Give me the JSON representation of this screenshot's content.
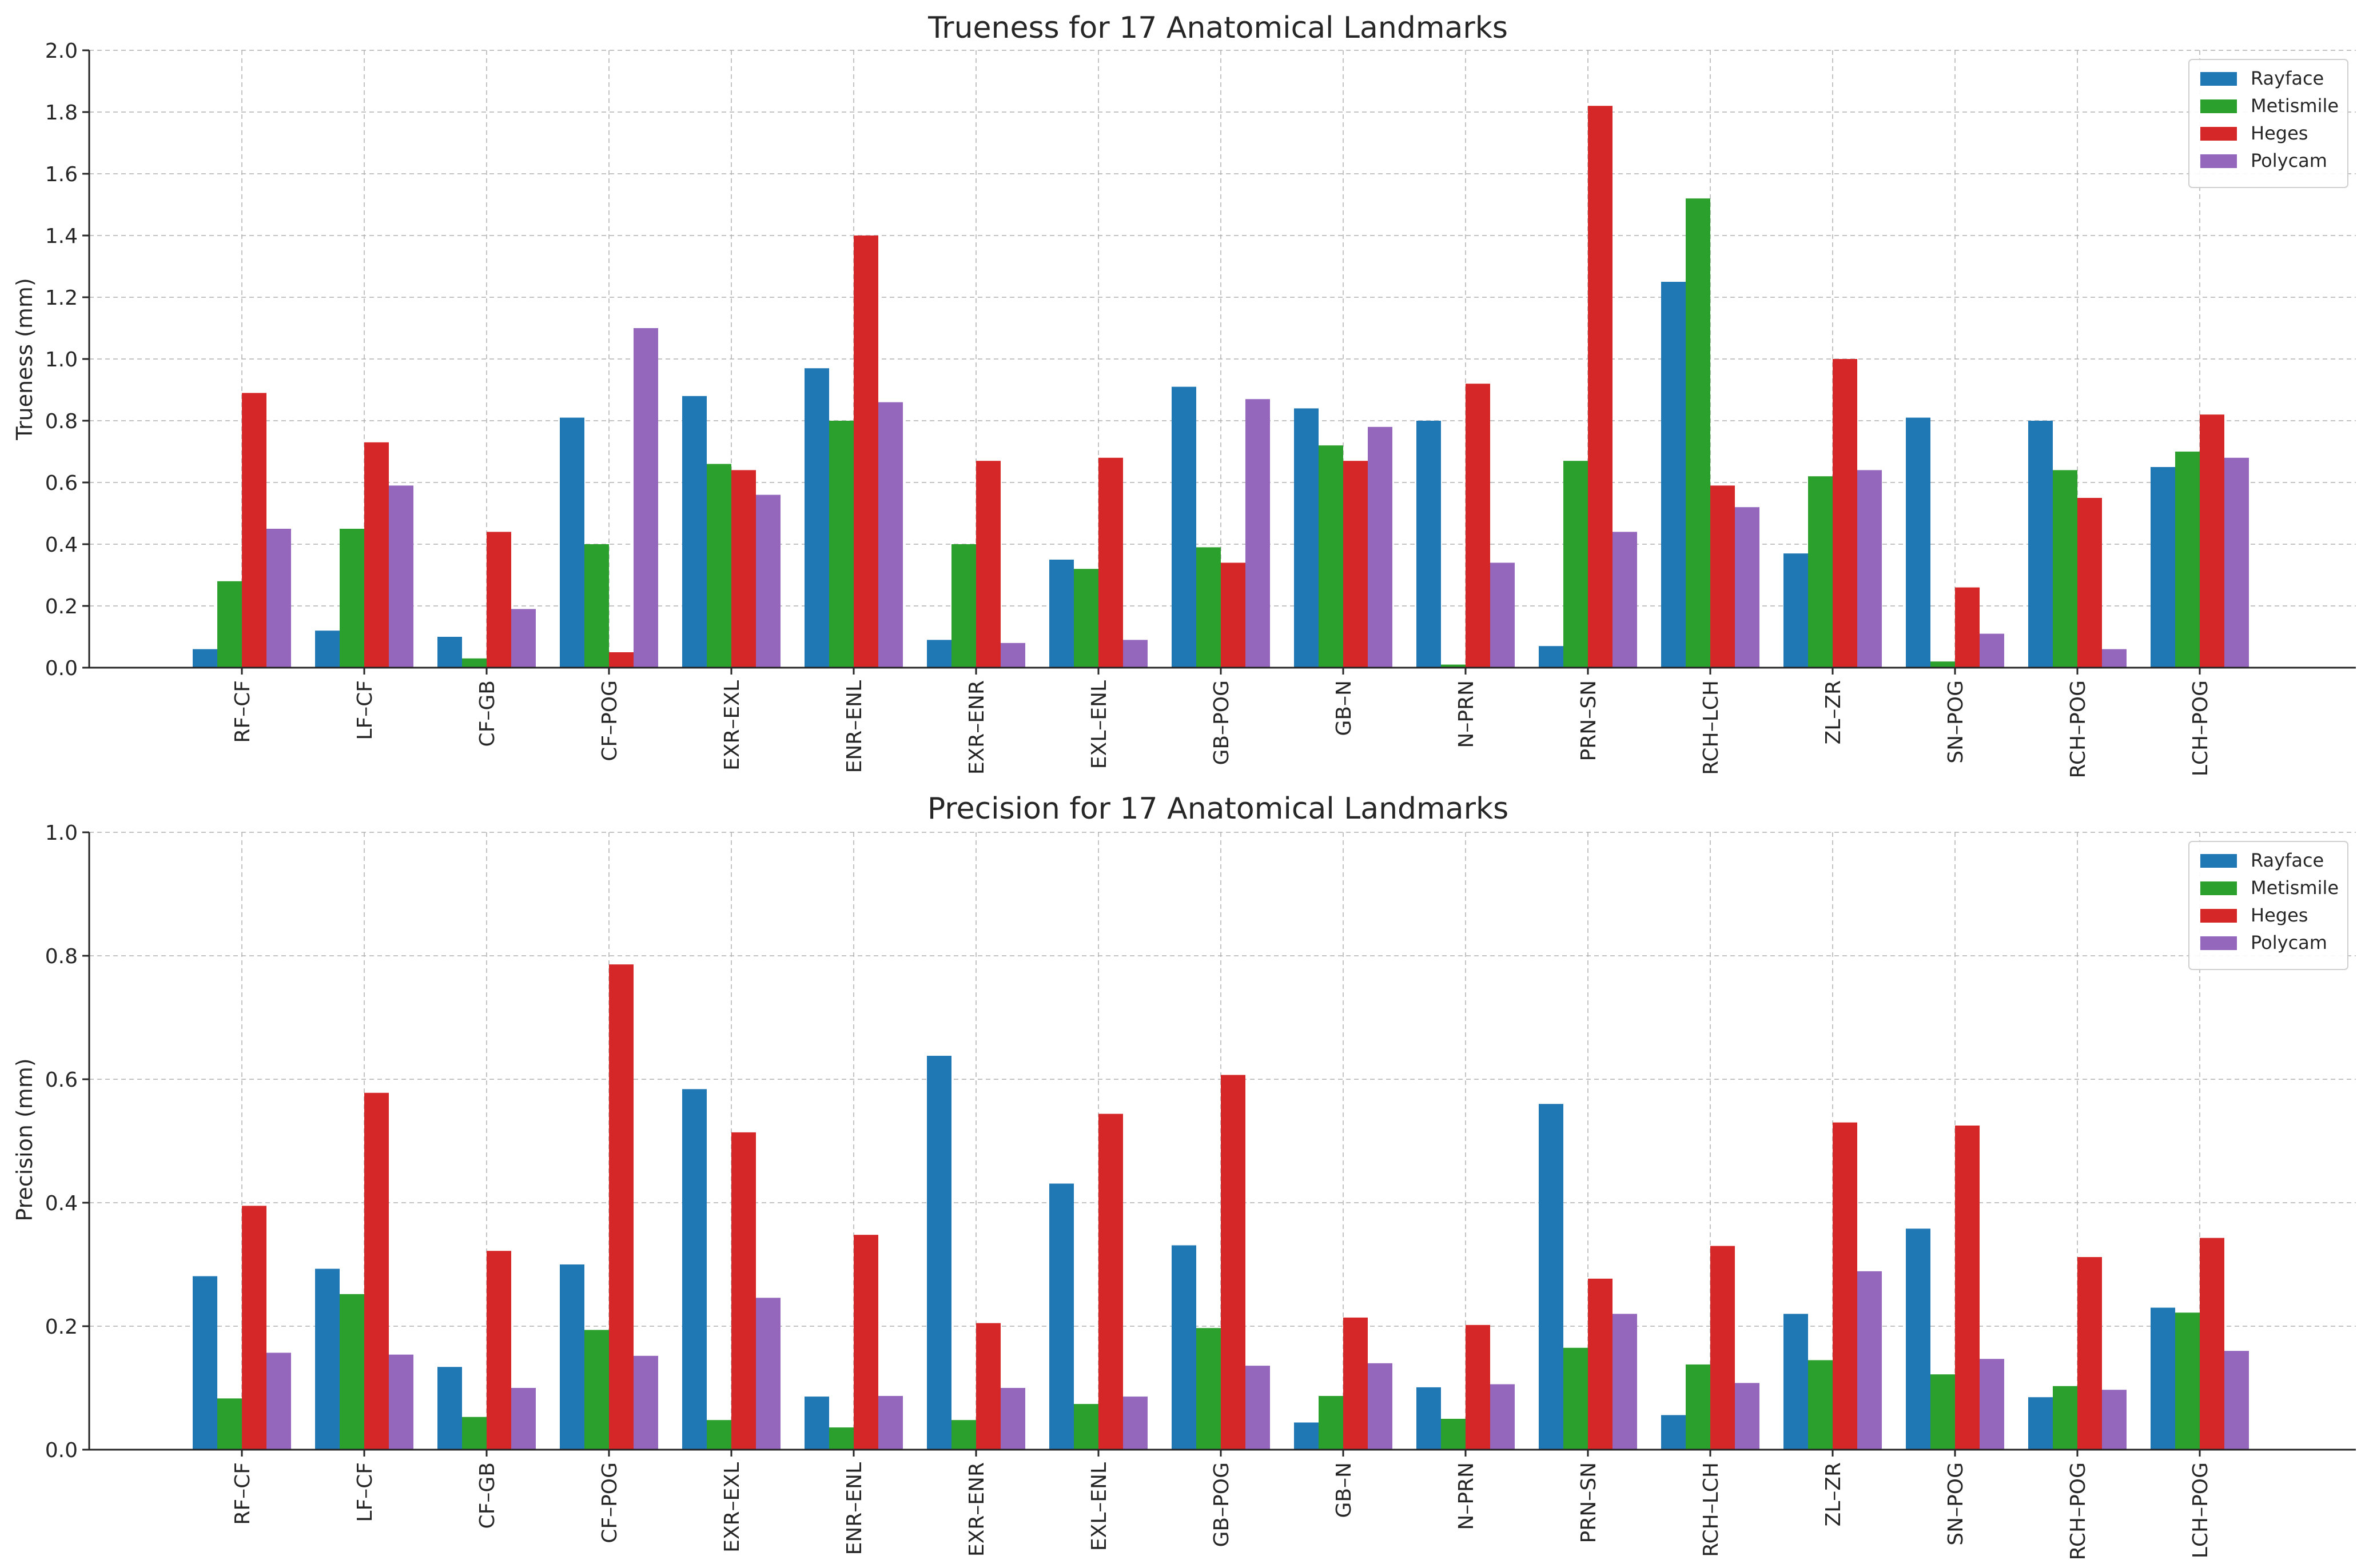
{
  "chart_data": [
    {
      "type": "bar",
      "title": "Trueness for 17 Anatomical Landmarks",
      "xlabel": "",
      "ylabel": "Trueness (mm)",
      "ylim": [
        0,
        2.0
      ],
      "yticks": [
        "0.0",
        "0.2",
        "0.4",
        "0.6",
        "0.8",
        "1.0",
        "1.2",
        "1.4",
        "1.6",
        "1.8",
        "2.0"
      ],
      "grid": true,
      "legend_position": "top-right",
      "categories": [
        "RF–CF",
        "LF–CF",
        "CF–GB",
        "CF–POG",
        "EXR–EXL",
        "ENR–ENL",
        "EXR–ENR",
        "EXL–ENL",
        "GB–POG",
        "GB–N",
        "N–PRN",
        "PRN–SN",
        "RCH–LCH",
        "ZL–ZR",
        "SN–POG",
        "RCH–POG",
        "LCH–POG"
      ],
      "series": [
        {
          "name": "Rayface",
          "color": "#1f77b4",
          "values": [
            0.06,
            0.12,
            0.1,
            0.81,
            0.88,
            0.97,
            0.09,
            0.35,
            0.91,
            0.84,
            0.8,
            0.07,
            1.25,
            0.37,
            0.81,
            0.8,
            0.65
          ]
        },
        {
          "name": "Metismile",
          "color": "#2ca02c",
          "values": [
            0.28,
            0.45,
            0.03,
            0.4,
            0.66,
            0.8,
            0.4,
            0.32,
            0.39,
            0.72,
            0.01,
            0.67,
            1.52,
            0.62,
            0.02,
            0.64,
            0.7
          ]
        },
        {
          "name": "Heges",
          "color": "#d62728",
          "values": [
            0.89,
            0.73,
            0.44,
            0.05,
            0.64,
            1.4,
            0.67,
            0.68,
            0.34,
            0.67,
            0.92,
            1.82,
            0.59,
            1.0,
            0.26,
            0.55,
            0.82
          ]
        },
        {
          "name": "Polycam",
          "color": "#9467bd",
          "values": [
            0.45,
            0.59,
            0.19,
            1.1,
            0.56,
            0.86,
            0.08,
            0.09,
            0.87,
            0.78,
            0.34,
            0.44,
            0.52,
            0.64,
            0.11,
            0.06,
            0.68
          ]
        }
      ]
    },
    {
      "type": "bar",
      "title": "Precision for 17 Anatomical Landmarks",
      "xlabel": "",
      "ylabel": "Precision (mm)",
      "ylim": [
        0,
        1.0
      ],
      "yticks": [
        "0.0",
        "0.2",
        "0.4",
        "0.6",
        "0.8",
        "1.0"
      ],
      "grid": true,
      "legend_position": "top-right",
      "categories": [
        "RF–CF",
        "LF–CF",
        "CF–GB",
        "CF–POG",
        "EXR–EXL",
        "ENR–ENL",
        "EXR–ENR",
        "EXL–ENL",
        "GB–POG",
        "GB–N",
        "N–PRN",
        "PRN–SN",
        "RCH–LCH",
        "ZL–ZR",
        "SN–POG",
        "RCH–POG",
        "LCH–POG"
      ],
      "series": [
        {
          "name": "Rayface",
          "color": "#1f77b4",
          "values": [
            0.281,
            0.293,
            0.134,
            0.3,
            0.584,
            0.086,
            0.638,
            0.431,
            0.331,
            0.044,
            0.101,
            0.56,
            0.056,
            0.22,
            0.358,
            0.085,
            0.23
          ]
        },
        {
          "name": "Metismile",
          "color": "#2ca02c",
          "values": [
            0.083,
            0.252,
            0.053,
            0.194,
            0.048,
            0.036,
            0.048,
            0.074,
            0.197,
            0.087,
            0.05,
            0.165,
            0.138,
            0.145,
            0.122,
            0.103,
            0.222
          ]
        },
        {
          "name": "Heges",
          "color": "#d62728",
          "values": [
            0.395,
            0.578,
            0.322,
            0.786,
            0.514,
            0.348,
            0.205,
            0.544,
            0.607,
            0.214,
            0.202,
            0.277,
            0.33,
            0.53,
            0.525,
            0.312,
            0.343
          ]
        },
        {
          "name": "Polycam",
          "color": "#9467bd",
          "values": [
            0.157,
            0.154,
            0.1,
            0.152,
            0.246,
            0.087,
            0.1,
            0.086,
            0.136,
            0.14,
            0.106,
            0.22,
            0.108,
            0.289,
            0.147,
            0.097,
            0.16
          ]
        }
      ]
    }
  ]
}
